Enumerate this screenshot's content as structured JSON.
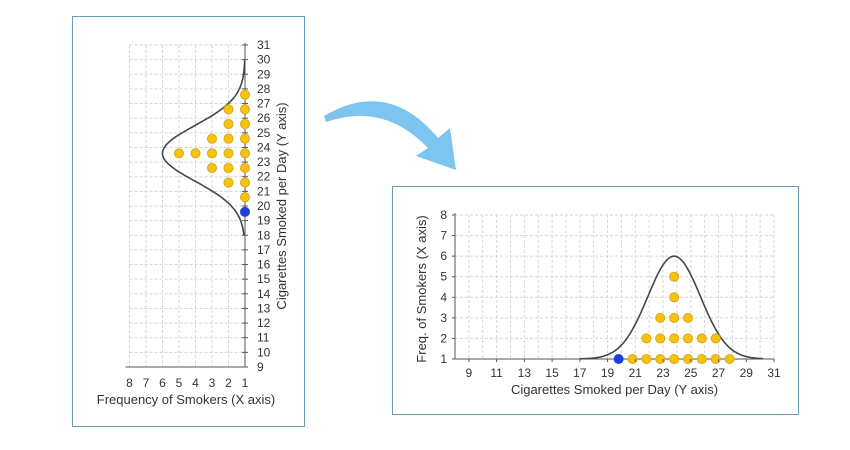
{
  "chart_data": [
    {
      "type": "scatter",
      "orientation": "rotated",
      "xlabel": "Frequency of Smokers (X axis)",
      "ylabel": "Cigarettes Smoked per Day (Y axis)",
      "x_ticks": [
        8,
        7,
        6,
        5,
        4,
        3,
        2,
        1
      ],
      "y_ticks": [
        9,
        10,
        11,
        12,
        13,
        14,
        15,
        16,
        17,
        18,
        19,
        20,
        21,
        22,
        23,
        24,
        25,
        26,
        27,
        28,
        29,
        30,
        31
      ],
      "xlim": [
        1,
        8
      ],
      "ylim": [
        9,
        31
      ],
      "grid": true,
      "points": [
        {
          "value": 19.6,
          "count": 1,
          "highlight": true
        },
        {
          "value": 20.6,
          "count": 1
        },
        {
          "value": 21.6,
          "count": 2
        },
        {
          "value": 22.6,
          "count": 3
        },
        {
          "value": 23.6,
          "count": 5
        },
        {
          "value": 24.6,
          "count": 3
        },
        {
          "value": 25.6,
          "count": 2
        },
        {
          "value": 26.6,
          "count": 2
        },
        {
          "value": 27.6,
          "count": 1
        }
      ],
      "curve": {
        "mean": 23.6,
        "sd": 1.9,
        "peak": 6,
        "base": 1,
        "range": [
          18,
          30
        ]
      }
    },
    {
      "type": "scatter",
      "orientation": "standard",
      "xlabel": "Cigarettes Smoked per Day (Y axis)",
      "ylabel": "Freq. of Smokers (X axis)",
      "x_ticks": [
        9,
        11,
        13,
        15,
        17,
        19,
        21,
        23,
        25,
        27,
        29,
        31
      ],
      "y_ticks": [
        1,
        2,
        3,
        4,
        5,
        6,
        7,
        8
      ],
      "xlim": [
        8,
        31
      ],
      "ylim": [
        1,
        8
      ],
      "grid": true,
      "points": [
        {
          "x": 19.8,
          "y": 1,
          "highlight": true
        },
        {
          "x": 20.8,
          "y": 1
        },
        {
          "x": 21.8,
          "y": 1
        },
        {
          "x": 21.8,
          "y": 2
        },
        {
          "x": 22.8,
          "y": 1
        },
        {
          "x": 22.8,
          "y": 2
        },
        {
          "x": 22.8,
          "y": 3
        },
        {
          "x": 23.8,
          "y": 1
        },
        {
          "x": 23.8,
          "y": 2
        },
        {
          "x": 23.8,
          "y": 3
        },
        {
          "x": 23.8,
          "y": 4
        },
        {
          "x": 23.8,
          "y": 5
        },
        {
          "x": 24.8,
          "y": 1
        },
        {
          "x": 24.8,
          "y": 2
        },
        {
          "x": 24.8,
          "y": 3
        },
        {
          "x": 25.8,
          "y": 1
        },
        {
          "x": 25.8,
          "y": 2
        },
        {
          "x": 26.8,
          "y": 1
        },
        {
          "x": 26.8,
          "y": 2
        },
        {
          "x": 27.8,
          "y": 1
        }
      ],
      "curve": {
        "mean": 23.8,
        "sd": 1.9,
        "peak": 6,
        "base": 1,
        "range": [
          17,
          30.2
        ]
      }
    }
  ],
  "colors": {
    "point": "#f5c211",
    "point_stroke": "#d8a200",
    "highlight": "#1f3fd6",
    "curve": "#3c4a52",
    "grid": "#d6d6d6",
    "axis": "#555555",
    "border": "#6a9bb5",
    "arrow": "#7cc5f0"
  }
}
